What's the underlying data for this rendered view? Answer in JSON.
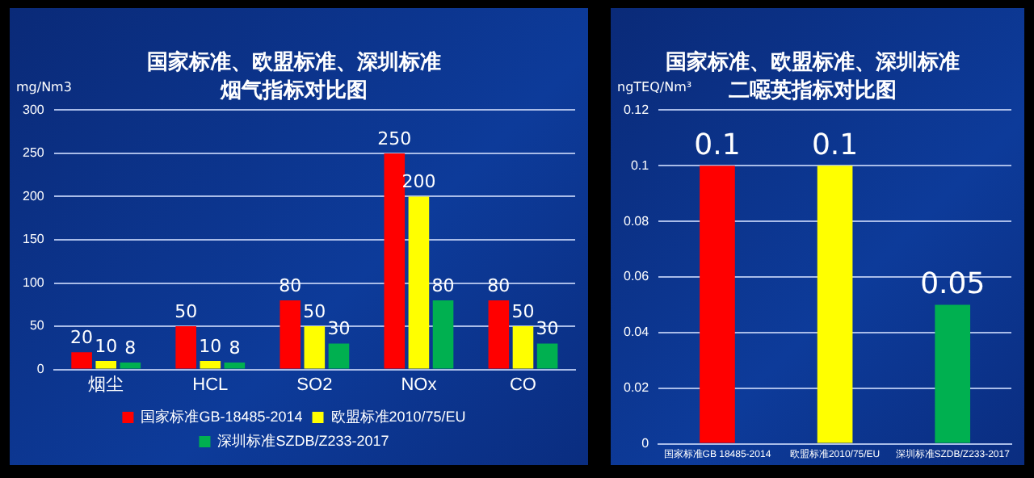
{
  "chart_data": [
    {
      "type": "bar",
      "title": "国家标准、欧盟标准、深圳标准",
      "subtitle": "烟气指标对比图",
      "ylabel": "mg/Nm3",
      "categories": [
        "烟尘",
        "HCL",
        "SO2",
        "NOx",
        "CO"
      ],
      "series": [
        {
          "name": "国家标准GB-18485-2014",
          "color": "#ff0000",
          "values": [
            20,
            50,
            80,
            250,
            80
          ]
        },
        {
          "name": "欧盟标准2010/75/EU",
          "color": "#ffff00",
          "values": [
            10,
            10,
            50,
            200,
            50
          ]
        },
        {
          "name": "深圳标准SZDB/Z233-2017",
          "color": "#00b050",
          "values": [
            8,
            8,
            30,
            80,
            30
          ]
        }
      ],
      "ylim": [
        0,
        300
      ],
      "yticks": [
        0,
        50,
        100,
        150,
        200,
        250,
        300
      ],
      "grid": "y",
      "legend": "bottom",
      "data_labels": true
    },
    {
      "type": "bar",
      "title": "国家标准、欧盟标准、深圳标准",
      "subtitle": "二噁英指标对比图",
      "ylabel": "ngTEQ/Nm³",
      "categories": [
        "国家标准GB 18485-2014",
        "欧盟标准2010/75/EU",
        "深圳标准SZDB/Z233-2017"
      ],
      "values": [
        0.1,
        0.1,
        0.05
      ],
      "colors": [
        "#ff0000",
        "#ffff00",
        "#00b050"
      ],
      "ylim": [
        0,
        0.12
      ],
      "yticks": [
        0,
        0.02,
        0.04,
        0.06,
        0.08,
        0.1,
        0.12
      ],
      "grid": "y",
      "data_labels": true
    }
  ]
}
